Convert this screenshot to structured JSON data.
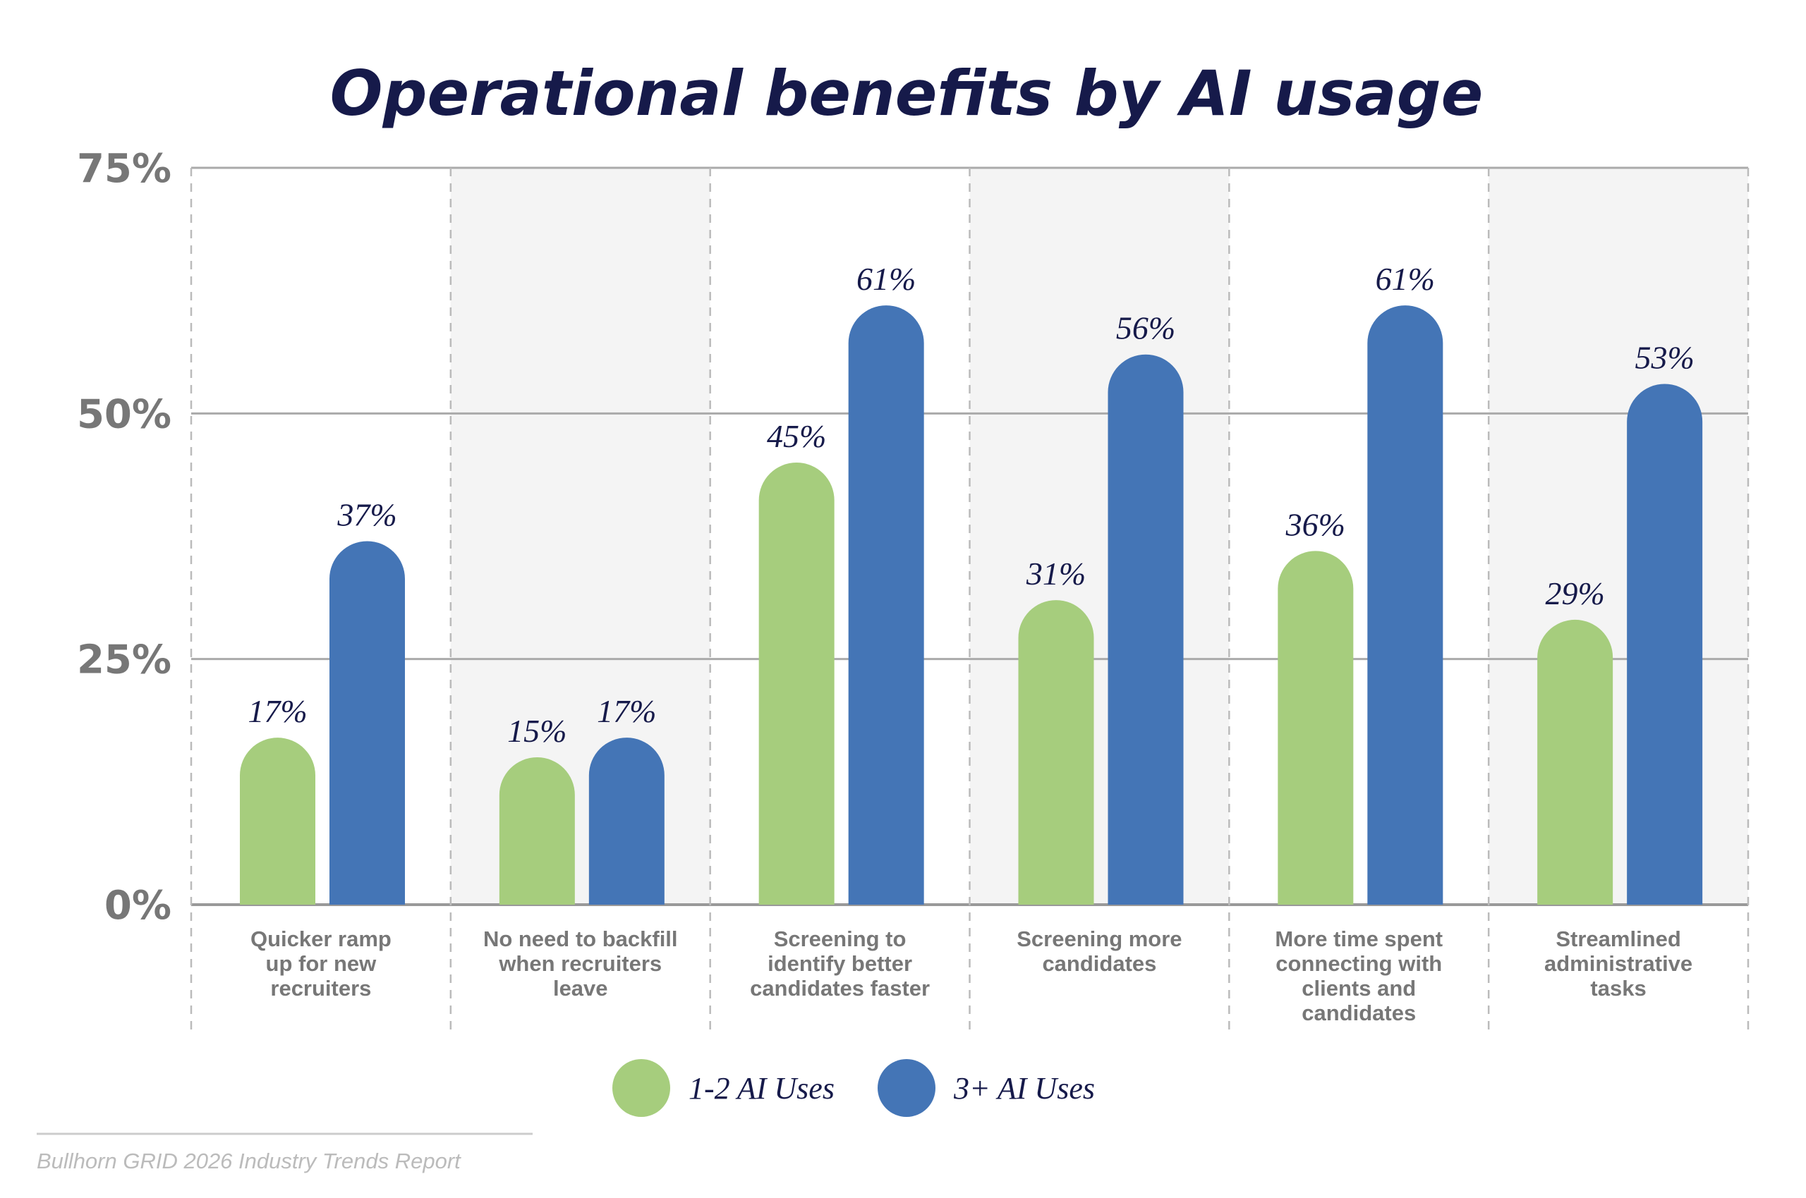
{
  "chart_data": {
    "type": "bar",
    "title": "Operational benefits by AI usage",
    "categories": [
      [
        "Quicker ramp",
        "up for new",
        "recruiters"
      ],
      [
        "No need to backfill",
        "when recruiters",
        "leave"
      ],
      [
        "Screening to",
        "identify better",
        "candidates faster"
      ],
      [
        "Screening more",
        "candidates"
      ],
      [
        "More time spent",
        "connecting with",
        "clients and",
        "candidates"
      ],
      [
        "Streamlined",
        "administrative",
        "tasks"
      ]
    ],
    "series": [
      {
        "name": "1-2 AI Uses",
        "color": "#a6cd7d",
        "values": [
          17,
          15,
          45,
          31,
          36,
          29
        ]
      },
      {
        "name": "3+ AI Uses",
        "color": "#4475b6",
        "values": [
          37,
          17,
          61,
          56,
          61,
          53
        ]
      }
    ],
    "value_suffix": "%",
    "yticks": [
      "0%",
      "25%",
      "50%",
      "75%"
    ],
    "ytick_values": [
      0,
      25,
      50,
      75
    ],
    "ylim": [
      0,
      75
    ],
    "xlabel": "",
    "ylabel": "",
    "grid": true,
    "legend": "bottom-center"
  },
  "source": "Bullhorn GRID 2026 Industry Trends Report"
}
